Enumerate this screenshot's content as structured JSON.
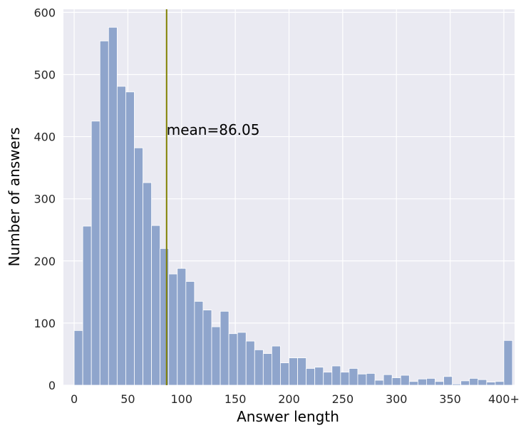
{
  "chart_data": {
    "type": "bar",
    "xlabel": "Answer length",
    "ylabel": "Number of answers",
    "xlim": [
      -10,
      410
    ],
    "ylim": [
      0,
      605
    ],
    "grid": true,
    "xticks": [
      {
        "value": 0,
        "label": "0"
      },
      {
        "value": 50,
        "label": "50"
      },
      {
        "value": 100,
        "label": "100"
      },
      {
        "value": 150,
        "label": "150"
      },
      {
        "value": 200,
        "label": "200"
      },
      {
        "value": 250,
        "label": "250"
      },
      {
        "value": 300,
        "label": "300"
      },
      {
        "value": 350,
        "label": "350"
      },
      {
        "value": 400,
        "label": "400+"
      }
    ],
    "yticks": [
      {
        "value": 0,
        "label": "0"
      },
      {
        "value": 100,
        "label": "100"
      },
      {
        "value": 200,
        "label": "200"
      },
      {
        "value": 300,
        "label": "300"
      },
      {
        "value": 400,
        "label": "400"
      },
      {
        "value": 500,
        "label": "500"
      },
      {
        "value": 600,
        "label": "600"
      }
    ],
    "bin_start": 0,
    "bin_width": 8,
    "values": [
      88,
      256,
      425,
      554,
      576,
      481,
      472,
      382,
      326,
      257,
      220,
      179,
      188,
      167,
      135,
      121,
      94,
      119,
      83,
      85,
      71,
      57,
      51,
      63,
      36,
      44,
      44,
      27,
      29,
      21,
      31,
      21,
      27,
      18,
      19,
      8,
      17,
      12,
      16,
      6,
      10,
      11,
      6,
      14,
      2,
      7,
      11,
      9,
      5,
      6,
      72
    ],
    "mean": 86.05,
    "mean_label": "mean=86.05",
    "bar_color": "#8fa5cc",
    "mean_line_color": "#808000",
    "background_color": "#eaeaf2"
  }
}
